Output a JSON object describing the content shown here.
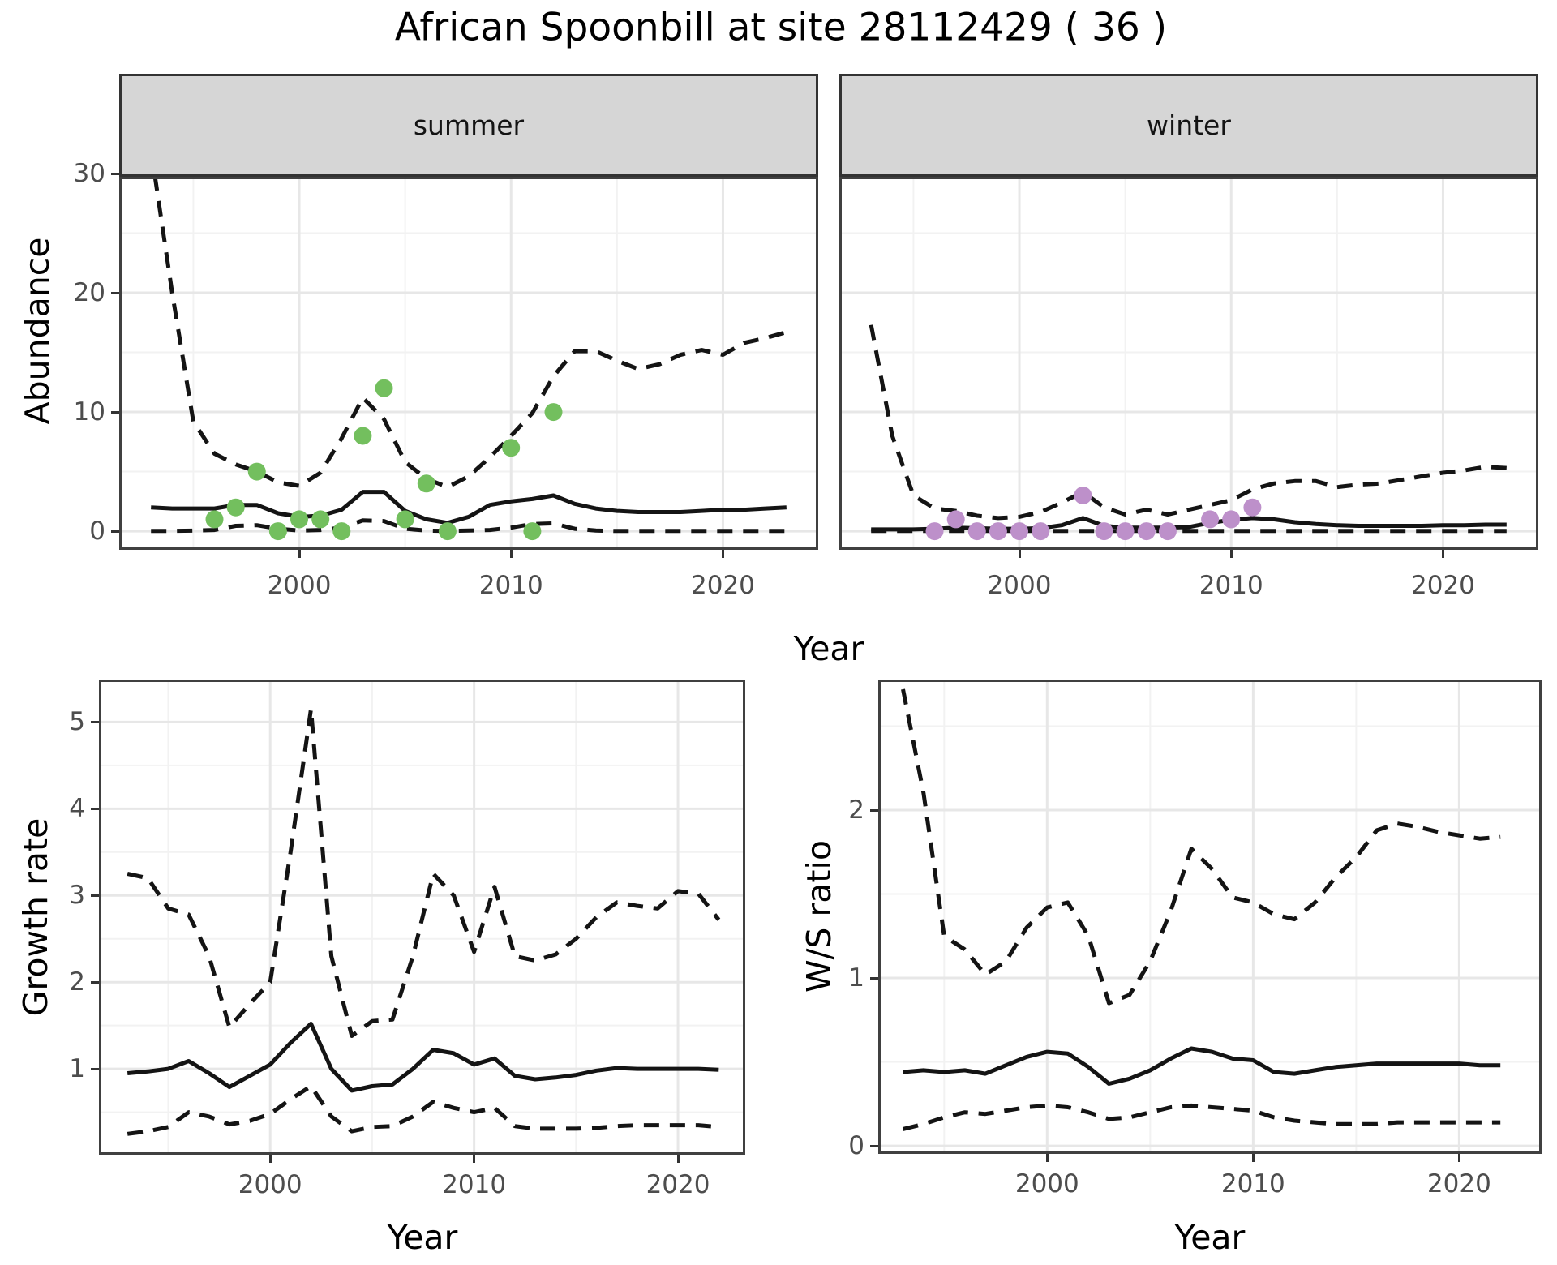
{
  "title": "African Spoonbill at site 28112429 ( 36 )",
  "title_parts": {
    "species": "African Spoonbill",
    "site_id": "28112429",
    "site_code": "36"
  },
  "colors": {
    "summer_points": "#73bf5e",
    "winter_points": "#bd90ca",
    "line": "#141414",
    "grid_major": "#e7e7e7",
    "grid_minor": "#f2f2f2",
    "strip_fill": "#d6d6d6",
    "panel_border": "#404040",
    "tick_text": "#4d4d4d"
  },
  "chart_data": [
    {
      "id": "abundance_summer",
      "type": "line",
      "facet": "summer",
      "xlabel": "Year",
      "ylabel": "Abundance",
      "x_domain": [
        1991.5,
        2024.5
      ],
      "y_domain": [
        -1.56,
        29.73
      ],
      "x_ticks": [
        2000,
        2010,
        2020
      ],
      "x_minor": [
        1995,
        2005,
        2015
      ],
      "y_ticks": [
        0,
        10,
        20,
        30
      ],
      "y_minor": [
        5,
        15,
        25
      ],
      "series": [
        {
          "name": "upper_95ci",
          "style": "dashed",
          "x": [
            1993,
            1994,
            1995,
            1996,
            1997,
            1998,
            1999,
            2000,
            2001,
            2002,
            2003,
            2004,
            2005,
            2006,
            2007,
            2008,
            2009,
            2010,
            2011,
            2012,
            2013,
            2014,
            2015,
            2016,
            2017,
            2018,
            2019,
            2020,
            2021,
            2022,
            2023
          ],
          "values": [
            32.0,
            20.0,
            9.2,
            6.5,
            5.6,
            5.0,
            4.1,
            3.8,
            4.9,
            7.8,
            11.2,
            9.4,
            5.8,
            4.4,
            3.7,
            4.6,
            6.2,
            8.0,
            9.9,
            13.0,
            15.1,
            15.1,
            14.3,
            13.6,
            14.0,
            14.8,
            15.2,
            14.8,
            15.8,
            16.2,
            16.7
          ]
        },
        {
          "name": "median",
          "style": "solid",
          "x": [
            1993,
            1994,
            1995,
            1996,
            1997,
            1998,
            1999,
            2000,
            2001,
            2002,
            2003,
            2004,
            2005,
            2006,
            2007,
            2008,
            2009,
            2010,
            2011,
            2012,
            2013,
            2014,
            2015,
            2016,
            2017,
            2018,
            2019,
            2020,
            2021,
            2022,
            2023
          ],
          "values": [
            2.0,
            1.9,
            1.9,
            1.9,
            2.2,
            2.2,
            1.5,
            1.2,
            1.3,
            1.8,
            3.3,
            3.3,
            1.7,
            1.0,
            0.7,
            1.2,
            2.2,
            2.5,
            2.7,
            3.0,
            2.3,
            1.9,
            1.7,
            1.6,
            1.6,
            1.6,
            1.7,
            1.8,
            1.8,
            1.9,
            2.0
          ]
        },
        {
          "name": "lower_95ci",
          "style": "dashed",
          "x": [
            1993,
            1994,
            1995,
            1996,
            1997,
            1998,
            1999,
            2000,
            2001,
            2002,
            2003,
            2004,
            2005,
            2006,
            2007,
            2008,
            2009,
            2010,
            2011,
            2012,
            2013,
            2014,
            2015,
            2016,
            2017,
            2018,
            2019,
            2020,
            2021,
            2022,
            2023
          ],
          "values": [
            0.02,
            0.02,
            0.05,
            0.1,
            0.45,
            0.5,
            0.2,
            0.05,
            0.1,
            0.3,
            0.9,
            0.85,
            0.2,
            0.05,
            0.02,
            0.05,
            0.1,
            0.3,
            0.6,
            0.65,
            0.2,
            0.05,
            0.02,
            0.02,
            0.02,
            0.02,
            0.02,
            0.02,
            0.02,
            0.02,
            0.02
          ]
        }
      ],
      "points": {
        "name": "observed_counts_summer",
        "color_key": "summer_points",
        "x": [
          1996,
          1997,
          1998,
          1999,
          2000,
          2001,
          2002,
          2003,
          2004,
          2005,
          2006,
          2007,
          2010,
          2011,
          2012
        ],
        "values": [
          1,
          2,
          5,
          0,
          1,
          1,
          0,
          8,
          12,
          1,
          4,
          0,
          7,
          0,
          10
        ]
      }
    },
    {
      "id": "abundance_winter",
      "type": "line",
      "facet": "winter",
      "xlabel": "Year",
      "ylabel": "Abundance",
      "x_domain": [
        1991.5,
        2024.5
      ],
      "y_domain": [
        -1.56,
        29.73
      ],
      "x_ticks": [
        2000,
        2010,
        2020
      ],
      "x_minor": [
        1995,
        2005,
        2015
      ],
      "y_ticks": [
        0,
        10,
        20,
        30
      ],
      "y_minor": [
        5,
        15,
        25
      ],
      "series": [
        {
          "name": "upper_95ci",
          "style": "dashed",
          "x": [
            1993,
            1994,
            1995,
            1996,
            1997,
            1998,
            1999,
            2000,
            2001,
            2002,
            2003,
            2004,
            2005,
            2006,
            2007,
            2008,
            2009,
            2010,
            2011,
            2012,
            2013,
            2014,
            2015,
            2016,
            2017,
            2018,
            2019,
            2020,
            2021,
            2022,
            2023
          ],
          "values": [
            17.3,
            8.0,
            3.0,
            1.9,
            1.7,
            1.3,
            1.1,
            1.2,
            1.6,
            2.4,
            3.3,
            2.0,
            1.4,
            1.8,
            1.4,
            1.8,
            2.2,
            2.6,
            3.5,
            4.0,
            4.2,
            4.2,
            3.7,
            3.9,
            4.0,
            4.3,
            4.6,
            4.9,
            5.1,
            5.4,
            5.3
          ]
        },
        {
          "name": "median",
          "style": "solid",
          "x": [
            1993,
            1994,
            1995,
            1996,
            1997,
            1998,
            1999,
            2000,
            2001,
            2002,
            2003,
            2004,
            2005,
            2006,
            2007,
            2008,
            2009,
            2010,
            2011,
            2012,
            2013,
            2014,
            2015,
            2016,
            2017,
            2018,
            2019,
            2020,
            2021,
            2022,
            2023
          ],
          "values": [
            0.15,
            0.15,
            0.15,
            0.2,
            0.3,
            0.25,
            0.2,
            0.2,
            0.25,
            0.5,
            1.1,
            0.45,
            0.3,
            0.3,
            0.3,
            0.35,
            0.7,
            0.95,
            1.1,
            1.0,
            0.75,
            0.6,
            0.5,
            0.45,
            0.45,
            0.45,
            0.45,
            0.5,
            0.5,
            0.55,
            0.55
          ]
        },
        {
          "name": "lower_95ci",
          "style": "dashed",
          "x": [
            1993,
            1994,
            1995,
            1996,
            1997,
            1998,
            1999,
            2000,
            2001,
            2002,
            2003,
            2004,
            2005,
            2006,
            2007,
            2008,
            2009,
            2010,
            2011,
            2012,
            2013,
            2014,
            2015,
            2016,
            2017,
            2018,
            2019,
            2020,
            2021,
            2022,
            2023
          ],
          "values": [
            0.02,
            0.02,
            0.02,
            0.02,
            0.02,
            0.02,
            0.02,
            0.02,
            0.02,
            0.02,
            0.02,
            0.02,
            0.02,
            0.02,
            0.02,
            0.02,
            0.02,
            0.02,
            0.02,
            0.02,
            0.02,
            0.02,
            0.02,
            0.02,
            0.02,
            0.02,
            0.02,
            0.02,
            0.02,
            0.02,
            0.02
          ]
        }
      ],
      "points": {
        "name": "observed_counts_winter",
        "color_key": "winter_points",
        "x": [
          1996,
          1997,
          1998,
          1999,
          2000,
          2001,
          2003,
          2004,
          2005,
          2006,
          2007,
          2009,
          2010,
          2011
        ],
        "values": [
          0,
          1,
          0,
          0,
          0,
          0,
          3,
          0,
          0,
          0,
          0,
          1,
          1,
          2
        ]
      }
    },
    {
      "id": "growth_rate",
      "type": "line",
      "facet": "",
      "xlabel": "Year",
      "ylabel": "Growth rate",
      "x_domain": [
        1991.6,
        2023.3
      ],
      "y_domain": [
        0.01,
        5.49
      ],
      "x_ticks": [
        2000,
        2010,
        2020
      ],
      "x_minor": [
        1995,
        2005,
        2015
      ],
      "y_ticks": [
        1,
        2,
        3,
        4,
        5
      ],
      "y_minor": [
        0.5,
        1.5,
        2.5,
        3.5,
        4.5
      ],
      "series": [
        {
          "name": "upper_95ci",
          "style": "dashed",
          "x": [
            1993,
            1994,
            1995,
            1996,
            1997,
            1998,
            1999,
            2000,
            2001,
            2002,
            2003,
            2004,
            2005,
            2006,
            2007,
            2008,
            2009,
            2010,
            2011,
            2012,
            2013,
            2014,
            2015,
            2016,
            2017,
            2018,
            2019,
            2020,
            2021,
            2022
          ],
          "values": [
            3.25,
            3.2,
            2.85,
            2.78,
            2.3,
            1.48,
            1.75,
            2.0,
            3.5,
            5.15,
            2.3,
            1.38,
            1.55,
            1.57,
            2.3,
            3.25,
            3.0,
            2.35,
            3.1,
            2.3,
            2.25,
            2.32,
            2.5,
            2.75,
            2.92,
            2.88,
            2.85,
            3.05,
            3.02,
            2.72
          ]
        },
        {
          "name": "median",
          "style": "solid",
          "x": [
            1993,
            1994,
            1995,
            1996,
            1997,
            1998,
            1999,
            2000,
            2001,
            2002,
            2003,
            2004,
            2005,
            2006,
            2007,
            2008,
            2009,
            2010,
            2011,
            2012,
            2013,
            2014,
            2015,
            2016,
            2017,
            2018,
            2019,
            2020,
            2021,
            2022
          ],
          "values": [
            0.95,
            0.97,
            1.0,
            1.09,
            0.95,
            0.79,
            0.92,
            1.05,
            1.3,
            1.52,
            1.0,
            0.75,
            0.8,
            0.82,
            1.0,
            1.22,
            1.18,
            1.05,
            1.12,
            0.92,
            0.88,
            0.9,
            0.93,
            0.98,
            1.01,
            1.0,
            1.0,
            1.0,
            1.0,
            0.99
          ]
        },
        {
          "name": "lower_95ci",
          "style": "dashed",
          "x": [
            1993,
            1994,
            1995,
            1996,
            1997,
            1998,
            1999,
            2000,
            2001,
            2002,
            2003,
            2004,
            2005,
            2006,
            2007,
            2008,
            2009,
            2010,
            2011,
            2012,
            2013,
            2014,
            2015,
            2016,
            2017,
            2018,
            2019,
            2020,
            2021,
            2022
          ],
          "values": [
            0.25,
            0.28,
            0.33,
            0.5,
            0.45,
            0.36,
            0.4,
            0.48,
            0.65,
            0.8,
            0.45,
            0.28,
            0.33,
            0.34,
            0.45,
            0.62,
            0.55,
            0.5,
            0.55,
            0.34,
            0.31,
            0.31,
            0.31,
            0.32,
            0.34,
            0.35,
            0.35,
            0.35,
            0.35,
            0.33
          ]
        }
      ]
    },
    {
      "id": "ws_ratio",
      "type": "line",
      "facet": "",
      "xlabel": "Year",
      "ylabel": "W/S ratio",
      "x_domain": [
        1991.8,
        2024.0
      ],
      "y_domain": [
        -0.048,
        2.778
      ],
      "x_ticks": [
        2000,
        2010,
        2020
      ],
      "x_minor": [
        1995,
        2005,
        2015
      ],
      "y_ticks": [
        0,
        1,
        2
      ],
      "y_minor": [
        0.5,
        1.5,
        2.5
      ],
      "series": [
        {
          "name": "upper_95ci",
          "style": "dashed",
          "x": [
            1993,
            1994,
            1995,
            1996,
            1997,
            1998,
            1999,
            2000,
            2001,
            2002,
            2003,
            2004,
            2005,
            2006,
            2007,
            2008,
            2009,
            2010,
            2011,
            2012,
            2013,
            2014,
            2015,
            2016,
            2017,
            2018,
            2019,
            2020,
            2021,
            2022
          ],
          "values": [
            2.72,
            2.1,
            1.25,
            1.17,
            1.02,
            1.1,
            1.3,
            1.42,
            1.45,
            1.25,
            0.85,
            0.9,
            1.1,
            1.4,
            1.77,
            1.65,
            1.48,
            1.45,
            1.38,
            1.35,
            1.45,
            1.6,
            1.72,
            1.88,
            1.92,
            1.9,
            1.87,
            1.85,
            1.83,
            1.84
          ]
        },
        {
          "name": "median",
          "style": "solid",
          "x": [
            1993,
            1994,
            1995,
            1996,
            1997,
            1998,
            1999,
            2000,
            2001,
            2002,
            2003,
            2004,
            2005,
            2006,
            2007,
            2008,
            2009,
            2010,
            2011,
            2012,
            2013,
            2014,
            2015,
            2016,
            2017,
            2018,
            2019,
            2020,
            2021,
            2022
          ],
          "values": [
            0.44,
            0.45,
            0.44,
            0.45,
            0.43,
            0.48,
            0.53,
            0.56,
            0.55,
            0.47,
            0.37,
            0.4,
            0.45,
            0.52,
            0.58,
            0.56,
            0.52,
            0.51,
            0.44,
            0.43,
            0.45,
            0.47,
            0.48,
            0.49,
            0.49,
            0.49,
            0.49,
            0.49,
            0.48,
            0.48
          ]
        },
        {
          "name": "lower_95ci",
          "style": "dashed",
          "x": [
            1993,
            1994,
            1995,
            1996,
            1997,
            1998,
            1999,
            2000,
            2001,
            2002,
            2003,
            2004,
            2005,
            2006,
            2007,
            2008,
            2009,
            2010,
            2011,
            2012,
            2013,
            2014,
            2015,
            2016,
            2017,
            2018,
            2019,
            2020,
            2021,
            2022
          ],
          "values": [
            0.1,
            0.13,
            0.17,
            0.2,
            0.19,
            0.21,
            0.23,
            0.24,
            0.23,
            0.2,
            0.16,
            0.17,
            0.2,
            0.23,
            0.24,
            0.23,
            0.22,
            0.21,
            0.17,
            0.15,
            0.14,
            0.13,
            0.13,
            0.13,
            0.14,
            0.14,
            0.14,
            0.14,
            0.14,
            0.14
          ]
        }
      ]
    }
  ]
}
